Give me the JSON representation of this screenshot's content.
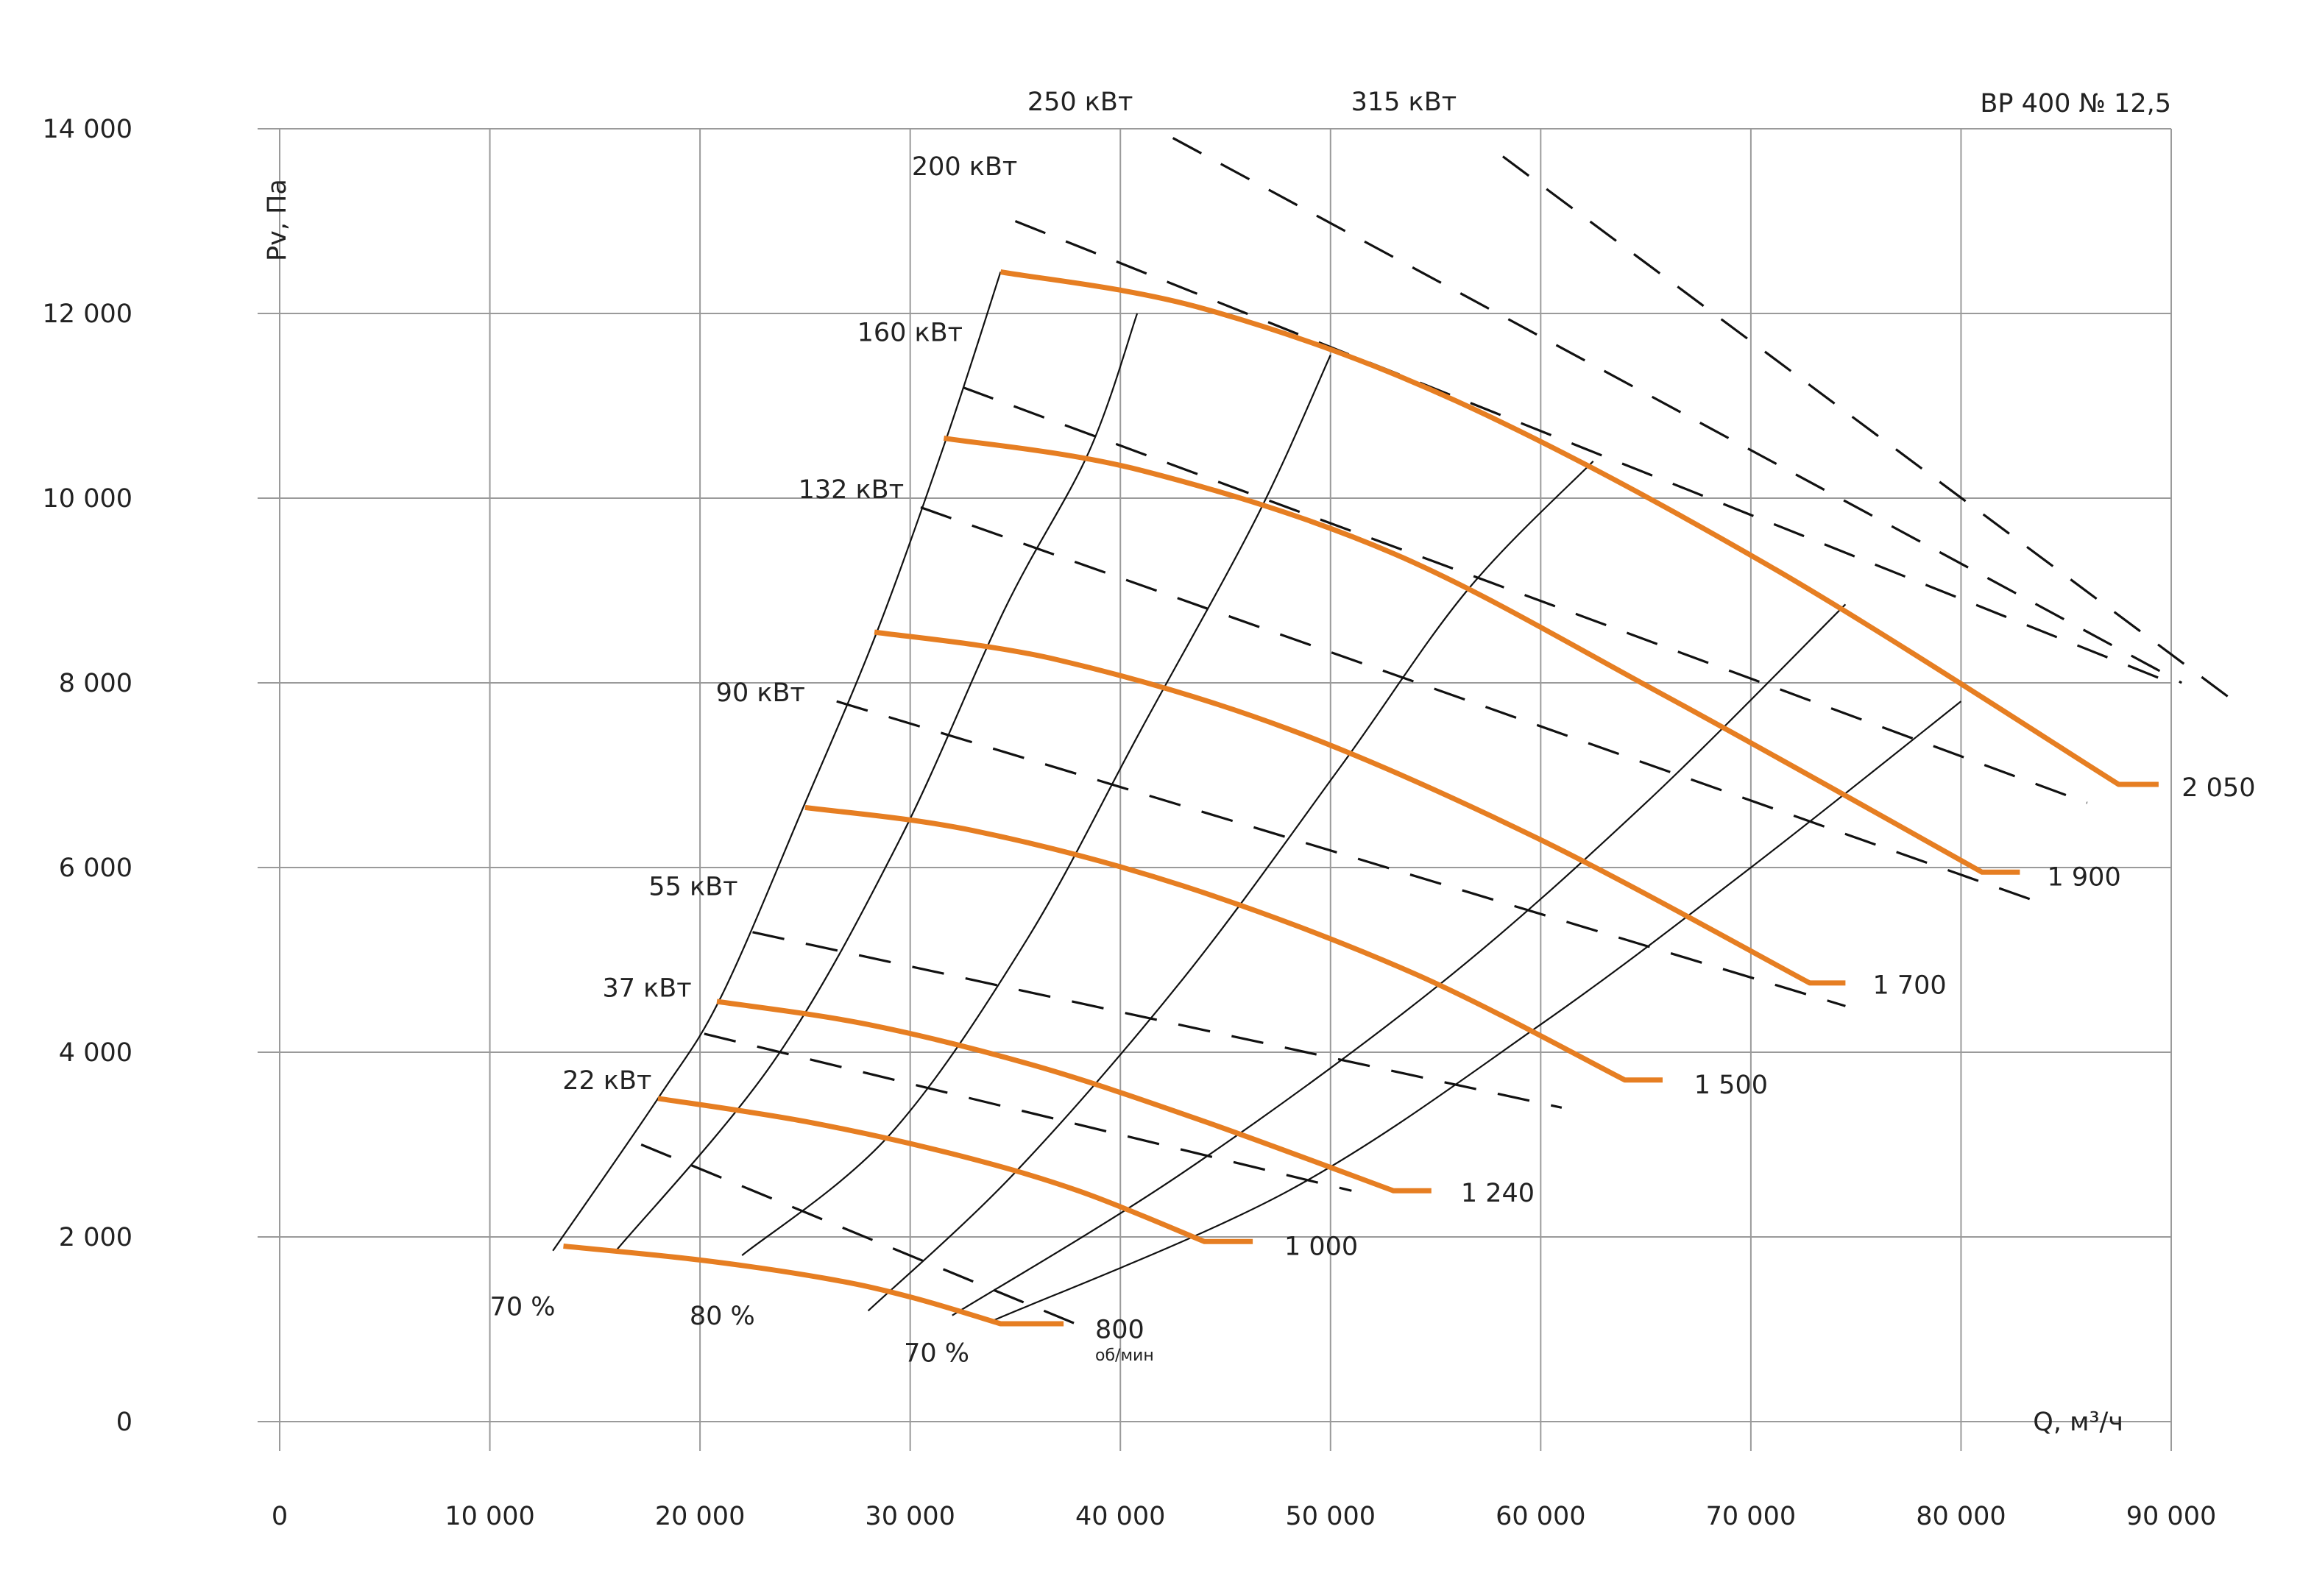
{
  "chart_data": {
    "type": "line",
    "title": "ВР 400 № 12,5",
    "xlabel": "Q, м³/ч",
    "ylabel": "Pv, Па",
    "xlim": [
      0,
      90000
    ],
    "ylim": [
      0,
      14000
    ],
    "x_ticks": [
      {
        "value": 0,
        "label": "0"
      },
      {
        "value": 10000,
        "label": "10 000"
      },
      {
        "value": 20000,
        "label": "20 000"
      },
      {
        "value": 30000,
        "label": "30 000"
      },
      {
        "value": 40000,
        "label": "40 000"
      },
      {
        "value": 50000,
        "label": "50 000"
      },
      {
        "value": 60000,
        "label": "60 000"
      },
      {
        "value": 70000,
        "label": "70 000"
      },
      {
        "value": 80000,
        "label": "80 000"
      },
      {
        "value": 90000,
        "label": "90 000"
      }
    ],
    "y_ticks": [
      {
        "value": 0,
        "label": "0"
      },
      {
        "value": 2000,
        "label": "2 000"
      },
      {
        "value": 4000,
        "label": "4 000"
      },
      {
        "value": 6000,
        "label": "6 000"
      },
      {
        "value": 8000,
        "label": "8 000"
      },
      {
        "value": 10000,
        "label": "10 000"
      },
      {
        "value": 12000,
        "label": "12 000"
      },
      {
        "value": 14000,
        "label": "14 000"
      }
    ],
    "grid": true,
    "curve_color": "#e67e22",
    "rpm_unit": "об/мин",
    "speed_curves": [
      {
        "name": "800",
        "label_x": 38800,
        "label_y": 1000,
        "points": [
          [
            13500,
            1900
          ],
          [
            20000,
            1750
          ],
          [
            26000,
            1550
          ],
          [
            30000,
            1350
          ],
          [
            34300,
            1060
          ]
        ],
        "tail_end": 37300
      },
      {
        "name": "1 000",
        "label_x": 47800,
        "label_y": 1900,
        "points": [
          [
            18000,
            3500
          ],
          [
            25000,
            3250
          ],
          [
            32000,
            2900
          ],
          [
            38000,
            2500
          ],
          [
            44000,
            1950
          ]
        ],
        "tail_end": 46300
      },
      {
        "name": "1 240",
        "label_x": 56200,
        "label_y": 2480,
        "points": [
          [
            20800,
            4550
          ],
          [
            28000,
            4300
          ],
          [
            36000,
            3850
          ],
          [
            44000,
            3250
          ],
          [
            53000,
            2500
          ]
        ],
        "tail_end": 54800
      },
      {
        "name": "1 500",
        "label_x": 67300,
        "label_y": 3650,
        "points": [
          [
            25000,
            6650
          ],
          [
            33000,
            6400
          ],
          [
            43000,
            5800
          ],
          [
            54000,
            4850
          ],
          [
            64000,
            3700
          ]
        ],
        "tail_end": 65800
      },
      {
        "name": "1 700",
        "label_x": 75800,
        "label_y": 4730,
        "points": [
          [
            28300,
            8550
          ],
          [
            37000,
            8250
          ],
          [
            48000,
            7500
          ],
          [
            60000,
            6300
          ],
          [
            72800,
            4750
          ]
        ],
        "tail_end": 74500
      },
      {
        "name": "1 900",
        "label_x": 84100,
        "label_y": 5900,
        "points": [
          [
            31600,
            10650
          ],
          [
            41000,
            10300
          ],
          [
            53000,
            9400
          ],
          [
            66000,
            7850
          ],
          [
            81000,
            5950
          ]
        ],
        "tail_end": 82800
      },
      {
        "name": "2 050",
        "label_x": 90500,
        "label_y": 6870,
        "points": [
          [
            34300,
            12450
          ],
          [
            44000,
            12050
          ],
          [
            56000,
            11050
          ],
          [
            71000,
            9250
          ],
          [
            87500,
            6900
          ]
        ],
        "tail_end": 89400
      }
    ],
    "efficiency_curves": [
      {
        "name": "70 %",
        "label_x": 10000,
        "label_y": 1150,
        "points": [
          [
            13000,
            1850
          ],
          [
            18000,
            3500
          ],
          [
            21000,
            4600
          ],
          [
            25000,
            6700
          ],
          [
            28500,
            8600
          ],
          [
            31800,
            10700
          ],
          [
            34300,
            12450
          ]
        ]
      },
      {
        "name": "",
        "points": [
          [
            16000,
            1850
          ],
          [
            23500,
            3900
          ],
          [
            29500,
            6300
          ],
          [
            34500,
            8800
          ],
          [
            38500,
            10500
          ],
          [
            40800,
            12000
          ]
        ]
      },
      {
        "name": "",
        "points": [
          [
            22000,
            1800
          ],
          [
            29000,
            3100
          ],
          [
            35500,
            5200
          ],
          [
            41000,
            7500
          ],
          [
            46500,
            9800
          ],
          [
            50000,
            11550
          ]
        ]
      },
      {
        "name": "80 %",
        "label_x": 19500,
        "label_y": 1050,
        "points": [
          [
            28000,
            1200
          ],
          [
            35000,
            2700
          ],
          [
            43000,
            4800
          ],
          [
            50500,
            7100
          ],
          [
            56500,
            9000
          ],
          [
            62500,
            10400
          ]
        ]
      },
      {
        "name": "",
        "points": [
          [
            32000,
            1150
          ],
          [
            43000,
            2700
          ],
          [
            55000,
            4700
          ],
          [
            65000,
            6700
          ],
          [
            74500,
            8850
          ]
        ]
      },
      {
        "name": "70 %",
        "label_x": 29700,
        "label_y": 650,
        "points": [
          [
            34000,
            1100
          ],
          [
            48000,
            2500
          ],
          [
            60000,
            4300
          ],
          [
            70000,
            6000
          ],
          [
            80000,
            7800
          ]
        ]
      }
    ],
    "power_lines": [
      {
        "name": "22 кВт",
        "label_x": 17700,
        "label_y": 3600,
        "p1": [
          17200,
          3000
        ],
        "p2": [
          38500,
          1000
        ]
      },
      {
        "name": "37 кВт",
        "label_x": 19600,
        "label_y": 4600,
        "p1": [
          20200,
          4200
        ],
        "p2": [
          51000,
          2500
        ]
      },
      {
        "name": "55 кВт",
        "label_x": 21800,
        "label_y": 5700,
        "p1": [
          22500,
          5300
        ],
        "p2": [
          61000,
          3400
        ]
      },
      {
        "name": "90 кВт",
        "label_x": 25000,
        "label_y": 7800,
        "p1": [
          26500,
          7800
        ],
        "p2": [
          74500,
          4500
        ]
      },
      {
        "name": "132 кВт",
        "label_x": 29700,
        "label_y": 10000,
        "p1": [
          30500,
          9900
        ],
        "p2": [
          84000,
          5600
        ]
      },
      {
        "name": "160 кВт",
        "label_x": 32500,
        "label_y": 11700,
        "p1": [
          32500,
          11200
        ],
        "p2": [
          86000,
          6700
        ]
      },
      {
        "name": "200 кВт",
        "label_x": 35100,
        "label_y": 13500,
        "p1": [
          35000,
          13000
        ],
        "p2": [
          90000,
          8000
        ]
      },
      {
        "name": "250 кВт",
        "label_x": 40600,
        "label_y": 14200,
        "p1": [
          42500,
          13900
        ],
        "p2": [
          90500,
          8000
        ]
      },
      {
        "name": "315 кВт",
        "label_x": 56000,
        "label_y": 14200,
        "p1": [
          58200,
          13700
        ],
        "p2": [
          93000,
          7800
        ]
      }
    ]
  }
}
